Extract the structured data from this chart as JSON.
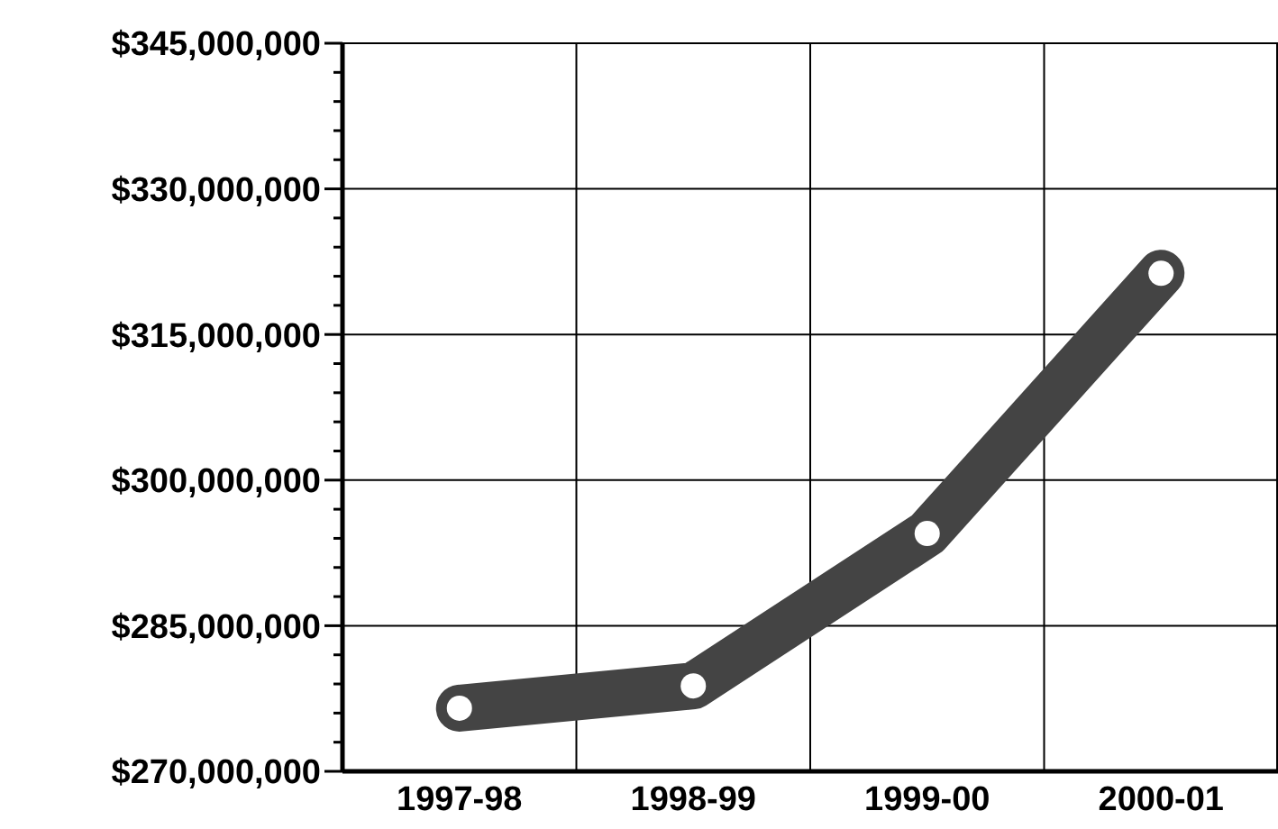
{
  "chart_data": {
    "type": "line",
    "categories": [
      "1997-98",
      "1998-99",
      "1999-00",
      "2000-01"
    ],
    "series": [
      {
        "color": "#444444",
        "values": [
          276500000,
          278800000,
          294500000,
          321300000
        ]
      }
    ],
    "ylim": [
      270000000,
      345000000
    ],
    "yticks": [
      {
        "value": 270000000,
        "label": "$270,000,000"
      },
      {
        "value": 273000000,
        "label": null
      },
      {
        "value": 276000000,
        "label": null
      },
      {
        "value": 279000000,
        "label": null
      },
      {
        "value": 282000000,
        "label": null
      },
      {
        "value": 285000000,
        "label": "$285,000,000"
      },
      {
        "value": 288000000,
        "label": null
      },
      {
        "value": 291000000,
        "label": null
      },
      {
        "value": 294000000,
        "label": null
      },
      {
        "value": 297000000,
        "label": null
      },
      {
        "value": 300000000,
        "label": "$300,000,000"
      },
      {
        "value": 303000000,
        "label": null
      },
      {
        "value": 306000000,
        "label": null
      },
      {
        "value": 309000000,
        "label": null
      },
      {
        "value": 312000000,
        "label": null
      },
      {
        "value": 315000000,
        "label": "$315,000,000"
      },
      {
        "value": 318000000,
        "label": null
      },
      {
        "value": 321000000,
        "label": null
      },
      {
        "value": 324000000,
        "label": null
      },
      {
        "value": 327000000,
        "label": null
      },
      {
        "value": 330000000,
        "label": "$330,000,000"
      },
      {
        "value": 333000000,
        "label": null
      },
      {
        "value": 336000000,
        "label": null
      },
      {
        "value": 339000000,
        "label": null
      },
      {
        "value": 342000000,
        "label": null
      },
      {
        "value": 345000000,
        "label": "$345,000,000"
      }
    ],
    "grid": true,
    "marker": "circle",
    "line_style": "solid"
  }
}
